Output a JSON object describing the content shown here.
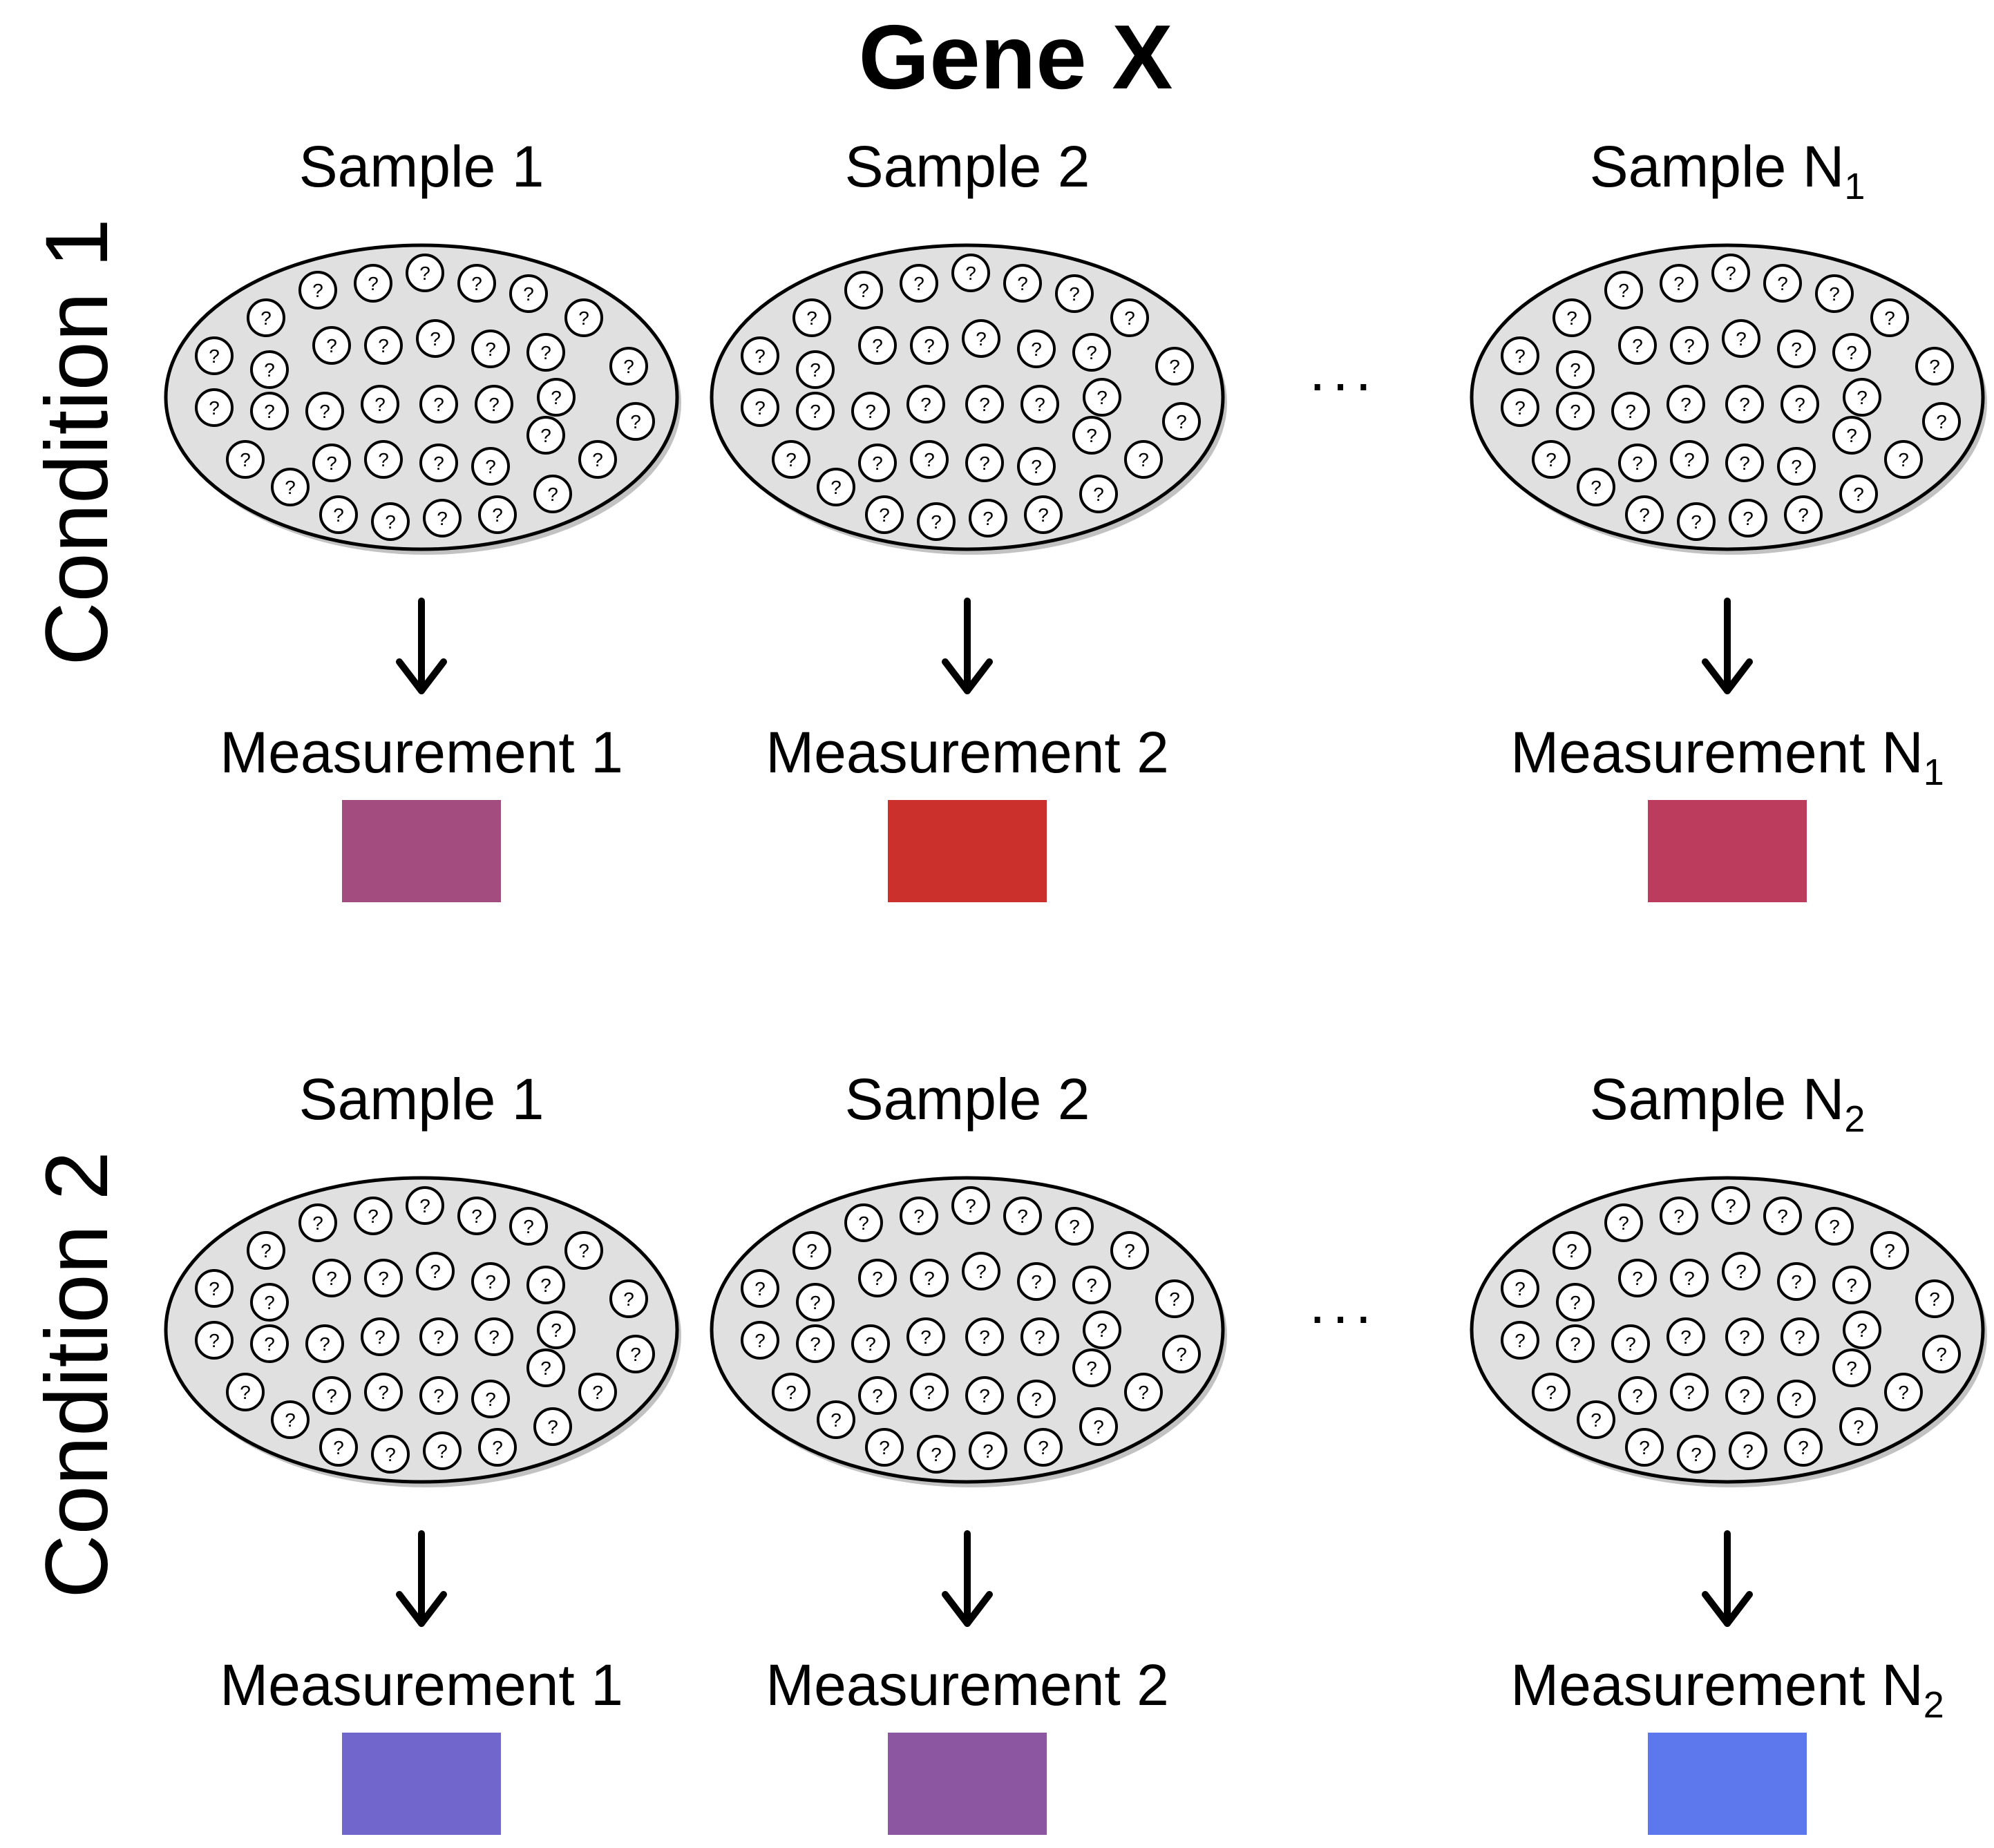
{
  "title": "Gene X",
  "ellipsis": "...",
  "cell_glyph": "?",
  "conditions": [
    {
      "label": "Condition 1",
      "samples": [
        {
          "name": "Sample 1",
          "sub": "",
          "measurement": "Measurement 1",
          "msub": "",
          "color": "#a34c80"
        },
        {
          "name": "Sample 2",
          "sub": "",
          "measurement": "Measurement 2",
          "msub": "",
          "color": "#cc302c"
        },
        {
          "name": "Sample N",
          "sub": "1",
          "measurement": "Measurement N",
          "msub": "1",
          "color": "#bb3c5c"
        }
      ]
    },
    {
      "label": "Condition 2",
      "samples": [
        {
          "name": "Sample 1",
          "sub": "",
          "measurement": "Measurement 1",
          "msub": "",
          "color": "#7066cc"
        },
        {
          "name": "Sample 2",
          "sub": "",
          "measurement": "Measurement 2",
          "msub": "",
          "color": "#8c56a0"
        },
        {
          "name": "Sample N",
          "sub": "2",
          "measurement": "Measurement N",
          "msub": "2",
          "color": "#5c78ec"
        }
      ]
    }
  ]
}
